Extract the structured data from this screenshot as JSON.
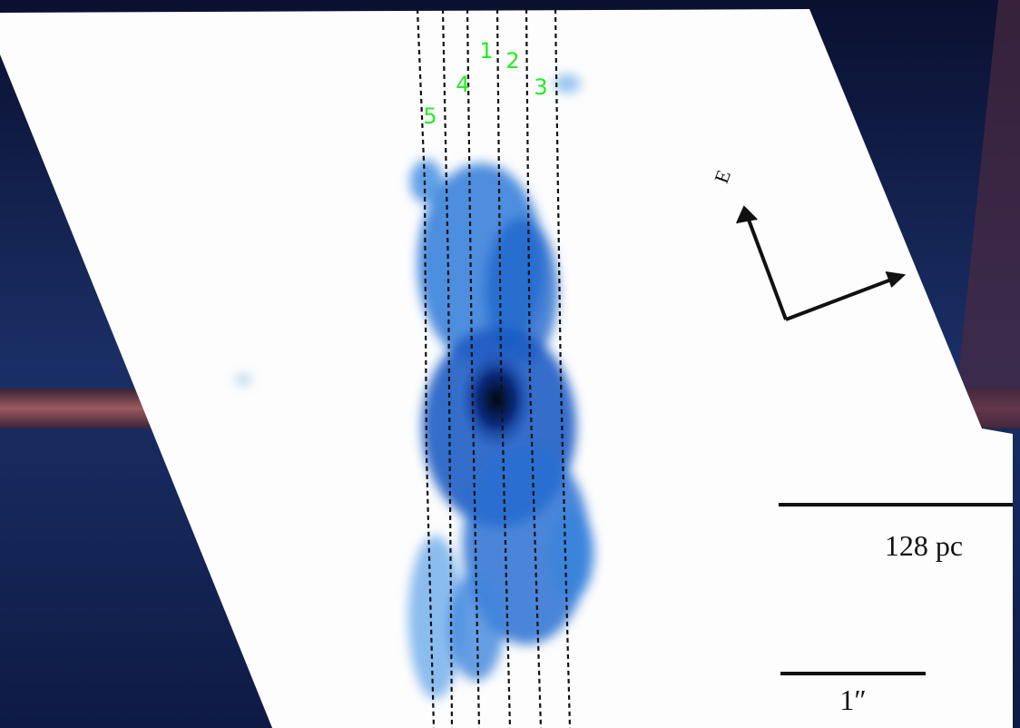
{
  "slits": {
    "labels": [
      "1",
      "2",
      "3",
      "4",
      "5"
    ]
  },
  "compass": {
    "label": "E"
  },
  "scale_bars": [
    {
      "label": "128 pc"
    },
    {
      "label": "1″"
    }
  ]
}
